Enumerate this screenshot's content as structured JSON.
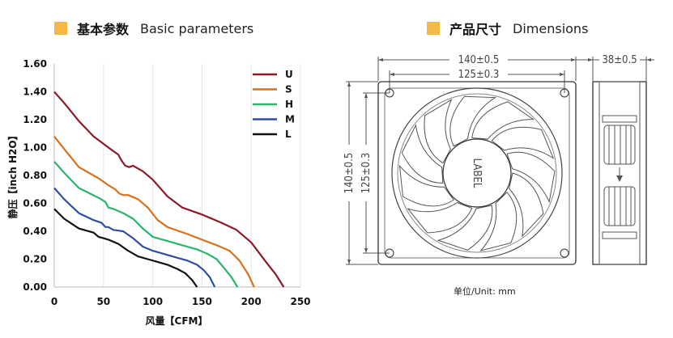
{
  "headers": {
    "left": {
      "cn": "基本参数",
      "en": "Basic parameters"
    },
    "right": {
      "cn": "产品尺寸",
      "en": "Dimensions"
    }
  },
  "chart_data": {
    "type": "line",
    "title": "",
    "xlabel": "风量【CFM】",
    "ylabel": "静压【inch H2O】",
    "xlim": [
      0,
      250
    ],
    "ylim": [
      0,
      1.6
    ],
    "x_ticks": [
      "0",
      "50",
      "100",
      "150",
      "200",
      "250"
    ],
    "y_ticks": [
      "0.00",
      "0.20",
      "0.40",
      "0.60",
      "0.80",
      "1.00",
      "1.20",
      "1.40",
      "1.60"
    ],
    "grid": "vertical",
    "legend": "top-right",
    "series": [
      {
        "name": "U",
        "color": "#8b1a2b",
        "points": [
          [
            0,
            1.4
          ],
          [
            10,
            1.32
          ],
          [
            25,
            1.19
          ],
          [
            40,
            1.08
          ],
          [
            55,
            1.0
          ],
          [
            65,
            0.95
          ],
          [
            68,
            0.91
          ],
          [
            72,
            0.87
          ],
          [
            76,
            0.86
          ],
          [
            80,
            0.87
          ],
          [
            90,
            0.83
          ],
          [
            100,
            0.77
          ],
          [
            115,
            0.65
          ],
          [
            130,
            0.57
          ],
          [
            150,
            0.52
          ],
          [
            170,
            0.46
          ],
          [
            185,
            0.41
          ],
          [
            200,
            0.32
          ],
          [
            215,
            0.18
          ],
          [
            225,
            0.09
          ],
          [
            233,
            0.0
          ]
        ]
      },
      {
        "name": "S",
        "color": "#d8701e",
        "points": [
          [
            0,
            1.08
          ],
          [
            10,
            0.99
          ],
          [
            25,
            0.86
          ],
          [
            45,
            0.78
          ],
          [
            55,
            0.73
          ],
          [
            62,
            0.7
          ],
          [
            66,
            0.67
          ],
          [
            70,
            0.66
          ],
          [
            75,
            0.66
          ],
          [
            85,
            0.63
          ],
          [
            95,
            0.57
          ],
          [
            105,
            0.48
          ],
          [
            115,
            0.43
          ],
          [
            135,
            0.38
          ],
          [
            150,
            0.34
          ],
          [
            165,
            0.3
          ],
          [
            178,
            0.26
          ],
          [
            188,
            0.19
          ],
          [
            197,
            0.09
          ],
          [
            203,
            0.0
          ]
        ]
      },
      {
        "name": "H",
        "color": "#2bb56b",
        "points": [
          [
            0,
            0.9
          ],
          [
            10,
            0.82
          ],
          [
            25,
            0.71
          ],
          [
            45,
            0.64
          ],
          [
            52,
            0.61
          ],
          [
            55,
            0.57
          ],
          [
            60,
            0.56
          ],
          [
            70,
            0.53
          ],
          [
            80,
            0.49
          ],
          [
            90,
            0.42
          ],
          [
            100,
            0.36
          ],
          [
            115,
            0.33
          ],
          [
            130,
            0.3
          ],
          [
            145,
            0.27
          ],
          [
            155,
            0.24
          ],
          [
            165,
            0.2
          ],
          [
            172,
            0.14
          ],
          [
            180,
            0.07
          ],
          [
            186,
            0.0
          ]
        ]
      },
      {
        "name": "M",
        "color": "#2e4ea1",
        "points": [
          [
            0,
            0.71
          ],
          [
            10,
            0.63
          ],
          [
            25,
            0.53
          ],
          [
            40,
            0.48
          ],
          [
            48,
            0.46
          ],
          [
            52,
            0.43
          ],
          [
            55,
            0.43
          ],
          [
            60,
            0.41
          ],
          [
            70,
            0.4
          ],
          [
            80,
            0.35
          ],
          [
            90,
            0.29
          ],
          [
            100,
            0.26
          ],
          [
            115,
            0.23
          ],
          [
            125,
            0.21
          ],
          [
            135,
            0.19
          ],
          [
            145,
            0.16
          ],
          [
            152,
            0.12
          ],
          [
            158,
            0.07
          ],
          [
            163,
            0.0
          ]
        ]
      },
      {
        "name": "L",
        "color": "#111111",
        "points": [
          [
            0,
            0.56
          ],
          [
            10,
            0.49
          ],
          [
            25,
            0.42
          ],
          [
            40,
            0.39
          ],
          [
            45,
            0.36
          ],
          [
            50,
            0.35
          ],
          [
            55,
            0.34
          ],
          [
            65,
            0.31
          ],
          [
            75,
            0.26
          ],
          [
            85,
            0.22
          ],
          [
            95,
            0.2
          ],
          [
            105,
            0.18
          ],
          [
            115,
            0.16
          ],
          [
            125,
            0.13
          ],
          [
            133,
            0.1
          ],
          [
            140,
            0.05
          ],
          [
            145,
            0.0
          ]
        ]
      }
    ]
  },
  "dimensions": {
    "outer_width": "140±0.5",
    "hole_width": "125±0.3",
    "depth": "38±0.5",
    "outer_height": "140±0.5",
    "hole_height": "125±0.3",
    "label_text": "LABEL",
    "unit_note": "单位/Unit: mm"
  }
}
